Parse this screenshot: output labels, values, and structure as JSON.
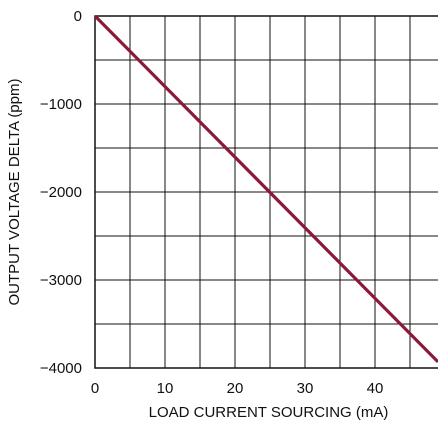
{
  "chart_data": {
    "type": "line",
    "title": "",
    "xlabel": "LOAD CURRENT SOURCING (mA)",
    "ylabel": "OUTPUT VOLTAGE DELTA (ppm)",
    "xlim": [
      0,
      49
    ],
    "ylim": [
      -4000,
      0
    ],
    "x_ticks": [
      0,
      10,
      20,
      30,
      40
    ],
    "x_tick_labels": [
      "0",
      "10",
      "20",
      "30",
      "40"
    ],
    "y_ticks": [
      0,
      -1000,
      -2000,
      -3000,
      -4000
    ],
    "y_tick_labels": [
      "0",
      "−1000",
      "−2000",
      "−3000",
      "−4000"
    ],
    "x_grid": [
      0,
      5,
      10,
      15,
      20,
      25,
      30,
      35,
      40,
      45
    ],
    "y_grid": [
      0,
      -500,
      -1000,
      -1500,
      -2000,
      -2500,
      -3000,
      -3500,
      -4000
    ],
    "grid": true,
    "legend": "none",
    "series": [
      {
        "color": "#8b1a3a",
        "x": [
          0,
          49
        ],
        "y": [
          0,
          -3930
        ]
      }
    ]
  }
}
